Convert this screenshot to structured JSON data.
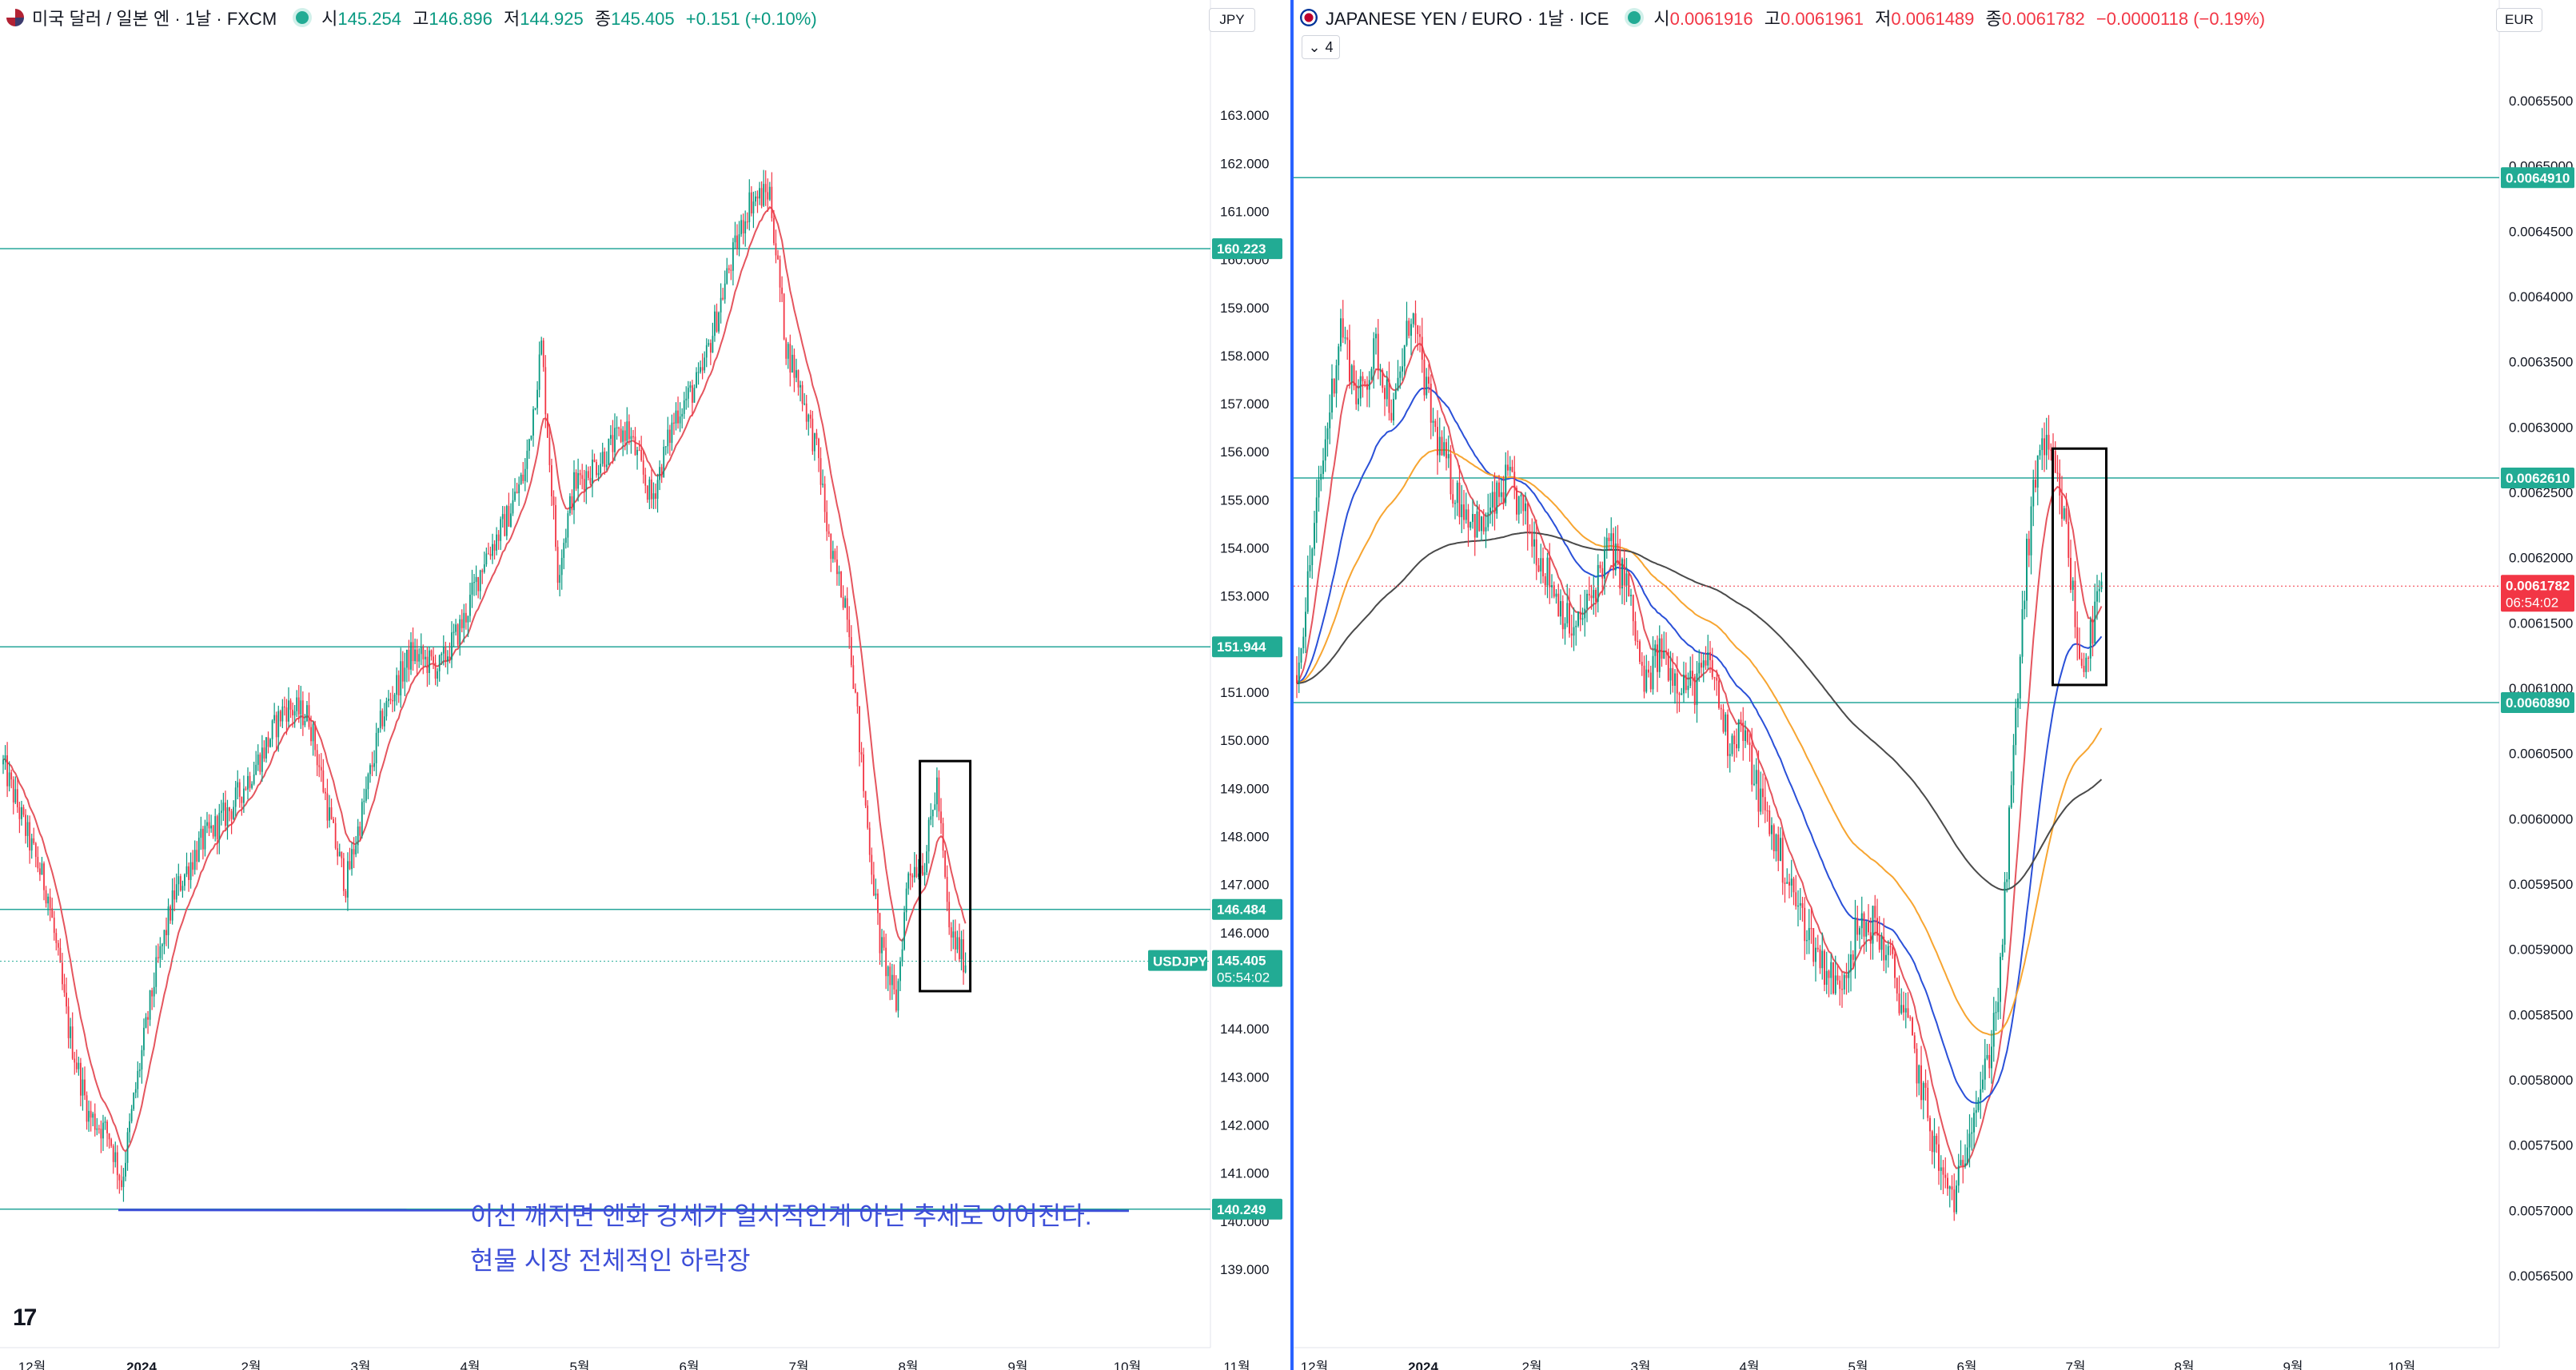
{
  "colors": {
    "up": "#089981",
    "down": "#f23645",
    "hline": "#26a69a",
    "box": "#000000",
    "note": "#3d4fd8",
    "ma_red": "#e5555e",
    "ma_blue": "#2a50d8",
    "ma_orange": "#f7a531",
    "ma_black": "#4a4a4a",
    "tag_green": "#22ab94",
    "tag_red": "#f23645",
    "divider": "#2962ff"
  },
  "left": {
    "header": {
      "flag_icon": "us-flag-icon",
      "title": "미국 달러 / 일본 엔 · 1날 · FXCM",
      "o_label": "시",
      "o": "145.254",
      "h_label": "고",
      "h": "146.896",
      "l_label": "저",
      "l": "144.925",
      "c_label": "종",
      "c": "145.405",
      "chg": "+0.151 (+0.10%)"
    },
    "currency": "JPY",
    "tv_logo": "17",
    "notes": [
      "이선 깨지면 엔화 강세가 일시적인게 아닌 추세로 이어진다.",
      "현물 시장 전체적인 하락장"
    ],
    "symbol_tag": "USDJPY",
    "price_tag": "145.405",
    "countdown": "05:54:02",
    "level_tags": [
      "160.223",
      "151.944",
      "146.484",
      "140.249"
    ],
    "x_ticks": [
      "12월",
      "2024",
      "2월",
      "3월",
      "4월",
      "5월",
      "6월",
      "7월",
      "8월",
      "9월",
      "10월",
      "11월"
    ],
    "y_ticks": [
      "163.000",
      "162.000",
      "161.000",
      "160.000",
      "159.000",
      "158.000",
      "157.000",
      "156.000",
      "155.000",
      "154.000",
      "153.000",
      "152.000",
      "151.000",
      "150.000",
      "149.000",
      "148.000",
      "147.000",
      "146.000",
      "145.000",
      "144.000",
      "143.000",
      "142.000",
      "141.000",
      "140.000",
      "139.000"
    ]
  },
  "right": {
    "header": {
      "flag_icon": "jpy-eur-icon",
      "title": "JAPANESE YEN / EURO · 1날 · ICE",
      "o_label": "시",
      "o": "0.0061916",
      "h_label": "고",
      "h": "0.0061961",
      "l_label": "저",
      "l": "0.0061489",
      "c_label": "종",
      "c": "0.0061782",
      "chg": "−0.0000118 (−0.19%)"
    },
    "currency": "EUR",
    "indicator_count": "4",
    "price_tag": "0.0061782",
    "countdown": "06:54:02",
    "level_tags": [
      "0.0064910",
      "0.0062610",
      "0.0060890"
    ],
    "x_ticks": [
      "12월",
      "2024",
      "2월",
      "3월",
      "4월",
      "5월",
      "6월",
      "7월",
      "8월",
      "9월",
      "10월"
    ],
    "y_ticks": [
      "0.0065500",
      "0.0065000",
      "0.0064500",
      "0.0064000",
      "0.0063500",
      "0.0063000",
      "0.0062500",
      "0.0062000",
      "0.0061500",
      "0.0061000",
      "0.0060500",
      "0.0060000",
      "0.0059500",
      "0.0059000",
      "0.0058500",
      "0.0058000",
      "0.0057500",
      "0.0057000",
      "0.0056500"
    ]
  },
  "chart_data": [
    {
      "type": "candlestick",
      "title": "미국 달러 / 일본 엔 · 1날 · FXCM",
      "ylim": [
        138.5,
        163.8
      ],
      "horizontal_levels": [
        160.223,
        151.944,
        146.484,
        140.249
      ],
      "last_price": 145.405,
      "path_anchors": [
        [
          0,
          149.5
        ],
        [
          12,
          148.0
        ],
        [
          22,
          146.8
        ],
        [
          32,
          144.0
        ],
        [
          42,
          142.2
        ],
        [
          52,
          141.8
        ],
        [
          58,
          140.8
        ],
        [
          64,
          142.5
        ],
        [
          74,
          145.0
        ],
        [
          84,
          146.8
        ],
        [
          96,
          147.8
        ],
        [
          112,
          148.6
        ],
        [
          128,
          149.8
        ],
        [
          138,
          150.7
        ],
        [
          150,
          150.5
        ],
        [
          162,
          148.0
        ],
        [
          168,
          147.0
        ],
        [
          176,
          148.5
        ],
        [
          186,
          150.5
        ],
        [
          200,
          151.8
        ],
        [
          214,
          151.5
        ],
        [
          226,
          152.5
        ],
        [
          236,
          153.8
        ],
        [
          246,
          154.5
        ],
        [
          256,
          155.6
        ],
        [
          264,
          158.2
        ],
        [
          272,
          153.5
        ],
        [
          280,
          155.3
        ],
        [
          292,
          155.8
        ],
        [
          306,
          156.5
        ],
        [
          318,
          155.0
        ],
        [
          330,
          156.8
        ],
        [
          342,
          157.5
        ],
        [
          356,
          159.8
        ],
        [
          366,
          161.2
        ],
        [
          376,
          161.4
        ],
        [
          384,
          158.2
        ],
        [
          392,
          157.2
        ],
        [
          400,
          155.8
        ],
        [
          406,
          153.8
        ],
        [
          414,
          152.8
        ],
        [
          422,
          149.0
        ],
        [
          430,
          145.8
        ],
        [
          438,
          144.5
        ],
        [
          444,
          147.3
        ],
        [
          452,
          147.5
        ],
        [
          458,
          149.1
        ],
        [
          464,
          146.0
        ],
        [
          472,
          145.4
        ]
      ],
      "moving_average": {
        "period": "short",
        "color": "red"
      },
      "annotation_box": {
        "from_index": 452,
        "to_index": 472
      }
    },
    {
      "type": "candlestick",
      "title": "JAPANESE YEN / EURO · 1날 · ICE",
      "ylim": [
        0.005628,
        0.006572
      ],
      "horizontal_levels": [
        0.006491,
        0.006261,
        0.006089
      ],
      "last_price": 0.0061782,
      "path_anchors": [
        [
          0,
          0.00611
        ],
        [
          10,
          0.00625
        ],
        [
          20,
          0.00638
        ],
        [
          28,
          0.00632
        ],
        [
          36,
          0.00636
        ],
        [
          44,
          0.00631
        ],
        [
          52,
          0.00639
        ],
        [
          62,
          0.0063
        ],
        [
          72,
          0.00625
        ],
        [
          84,
          0.00622
        ],
        [
          96,
          0.00626
        ],
        [
          106,
          0.00622
        ],
        [
          116,
          0.00618
        ],
        [
          126,
          0.00614
        ],
        [
          134,
          0.00617
        ],
        [
          142,
          0.00621
        ],
        [
          150,
          0.00618
        ],
        [
          158,
          0.0061
        ],
        [
          166,
          0.00613
        ],
        [
          172,
          0.00611
        ],
        [
          180,
          0.0061
        ],
        [
          188,
          0.00612
        ],
        [
          196,
          0.00606
        ],
        [
          202,
          0.00607
        ],
        [
          210,
          0.00602
        ],
        [
          218,
          0.00598
        ],
        [
          226,
          0.00594
        ],
        [
          236,
          0.0059
        ],
        [
          246,
          0.00587
        ],
        [
          254,
          0.00591
        ],
        [
          262,
          0.00592
        ],
        [
          270,
          0.00589
        ],
        [
          278,
          0.00584
        ],
        [
          286,
          0.00578
        ],
        [
          294,
          0.00572
        ],
        [
          300,
          0.00571
        ],
        [
          306,
          0.00577
        ],
        [
          314,
          0.00581
        ],
        [
          320,
          0.00588
        ],
        [
          326,
          0.00605
        ],
        [
          332,
          0.0062
        ],
        [
          338,
          0.00629
        ],
        [
          344,
          0.00627
        ],
        [
          350,
          0.00622
        ],
        [
          356,
          0.00612
        ],
        [
          360,
          0.00613
        ],
        [
          366,
          0.00618
        ]
      ],
      "moving_averages": [
        {
          "color": "red"
        },
        {
          "color": "blue"
        },
        {
          "color": "orange"
        },
        {
          "color": "black"
        }
      ],
      "annotation_box": {
        "from_index": 346,
        "to_index": 366
      }
    }
  ]
}
